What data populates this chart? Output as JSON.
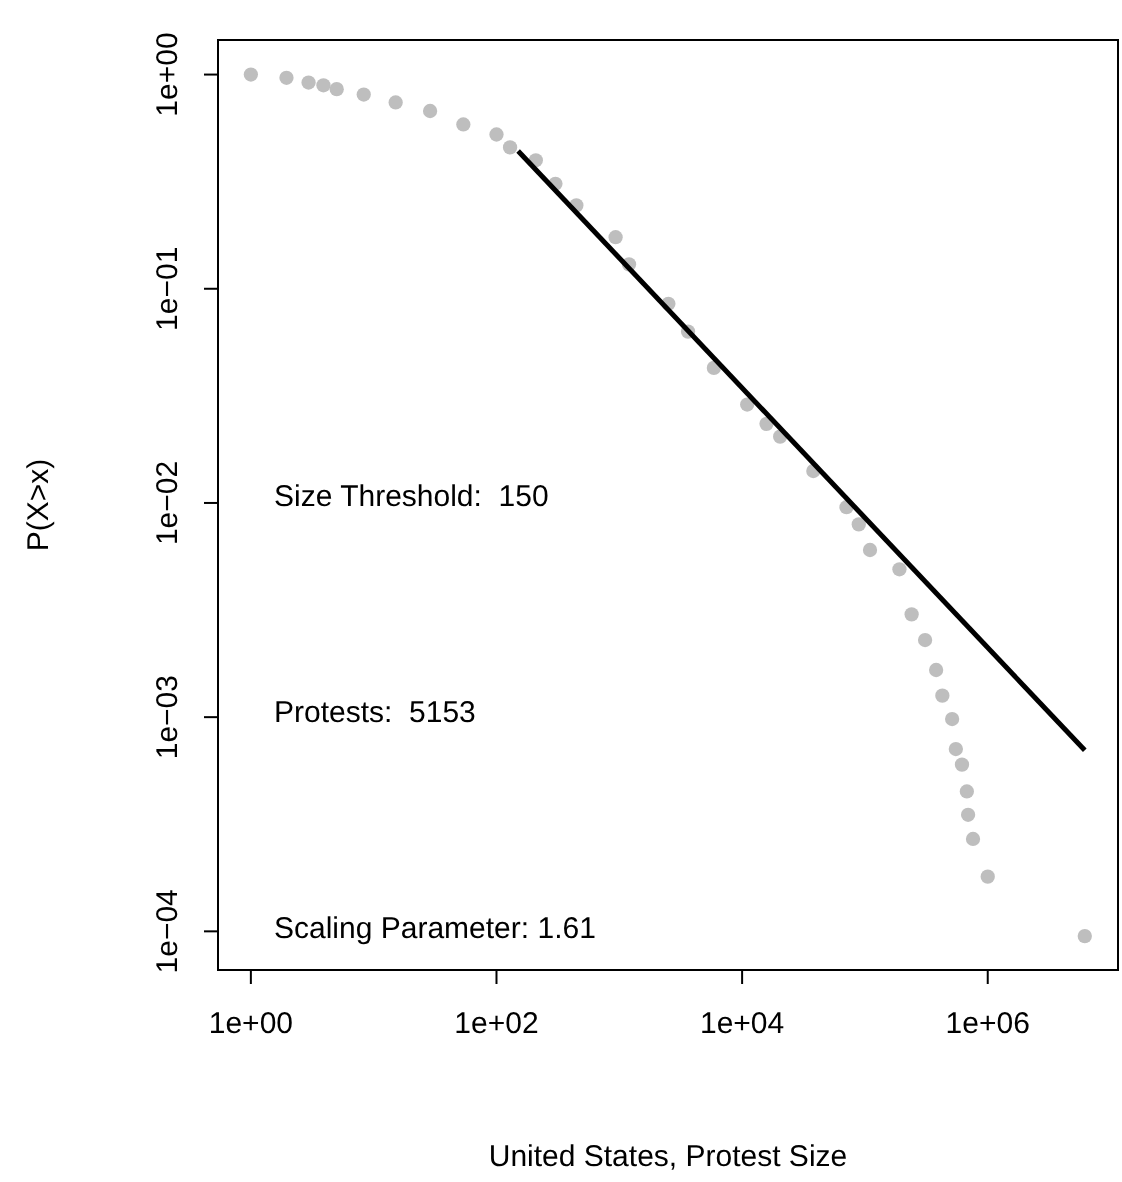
{
  "chart_data": {
    "type": "scatter",
    "xlabel": "United States, Protest Size",
    "ylabel": "P(X>x)",
    "log": "xy",
    "grid": false,
    "xlim": [
      0.54,
      11500000
    ],
    "ylim": [
      6.6e-05,
      1.45
    ],
    "xticks": [
      {
        "value": 1,
        "label": "1e+00"
      },
      {
        "value": 100,
        "label": "1e+02"
      },
      {
        "value": 10000,
        "label": "1e+04"
      },
      {
        "value": 1000000,
        "label": "1e+06"
      }
    ],
    "yticks": [
      {
        "value": 0.0001,
        "label": "1e−04"
      },
      {
        "value": 0.001,
        "label": "1e−03"
      },
      {
        "value": 0.01,
        "label": "1e−02"
      },
      {
        "value": 0.1,
        "label": "1e−01"
      },
      {
        "value": 1,
        "label": "1e+00"
      }
    ],
    "annotations": [
      "Size Threshold:  150",
      "Protests:  5153",
      "Scaling Parameter: 1.61"
    ],
    "series": [
      {
        "marker": "circle",
        "color": "#bebebe",
        "x": [
          1,
          1.95,
          2.95,
          3.9,
          5,
          8.3,
          15.1,
          28.8,
          53.7,
          100,
          129,
          209,
          302,
          447,
          933,
          1200,
          2510,
          3630,
          5890,
          11000,
          15800,
          20400,
          38000,
          70800,
          89100,
          110000,
          191000,
          240000,
          309000,
          380000,
          427000,
          513000,
          550000,
          617000,
          676000,
          692000,
          759000,
          1000000,
          6170000
        ],
        "values": [
          1,
          0.966,
          0.918,
          0.891,
          0.855,
          0.807,
          0.741,
          0.676,
          0.585,
          0.525,
          0.457,
          0.398,
          0.309,
          0.245,
          0.174,
          0.13,
          0.0851,
          0.0631,
          0.0427,
          0.0288,
          0.0234,
          0.0204,
          0.0141,
          0.00955,
          0.00794,
          0.00603,
          0.0049,
          0.00302,
          0.00229,
          0.00166,
          0.00126,
          0.00098,
          0.00071,
          0.0006,
          0.00045,
          0.00035,
          0.00027,
          0.00018,
          9.5e-05
        ]
      },
      {
        "type": "line",
        "color": "#000000",
        "x": [
          150,
          6170000
        ],
        "values": [
          0.44,
          0.0007
        ]
      }
    ]
  }
}
